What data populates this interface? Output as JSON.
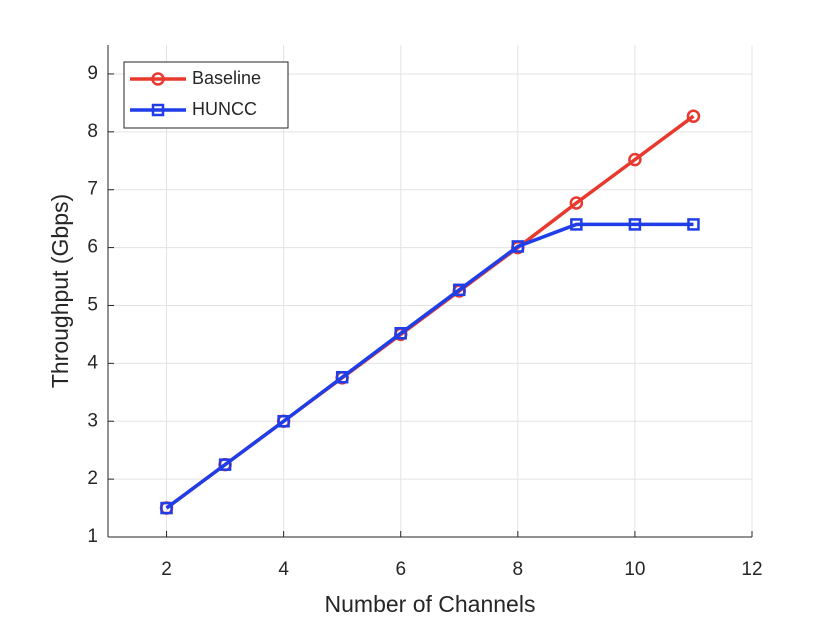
{
  "chart_data": {
    "type": "line",
    "xlabel": "Number of Channels",
    "ylabel": "Throughput (Gbps)",
    "x": [
      2,
      3,
      4,
      5,
      6,
      7,
      8,
      9,
      10,
      11
    ],
    "series": [
      {
        "name": "Baseline",
        "color": "#e8392f",
        "marker": "circle",
        "values": [
          1.5,
          2.25,
          3.0,
          3.75,
          4.5,
          5.25,
          6.0,
          6.77,
          7.52,
          8.27
        ]
      },
      {
        "name": "HUNCC",
        "color": "#1f3ee8",
        "marker": "square",
        "values": [
          1.5,
          2.25,
          3.0,
          3.76,
          4.52,
          5.27,
          6.02,
          6.4,
          6.4,
          6.4
        ]
      }
    ],
    "xlim": [
      1,
      12
    ],
    "xticks": [
      2,
      4,
      6,
      8,
      10,
      12
    ],
    "ylim": [
      1,
      9.5
    ],
    "yticks": [
      1,
      2,
      3,
      4,
      5,
      6,
      7,
      8,
      9
    ],
    "grid": true,
    "legend": "upper left"
  }
}
